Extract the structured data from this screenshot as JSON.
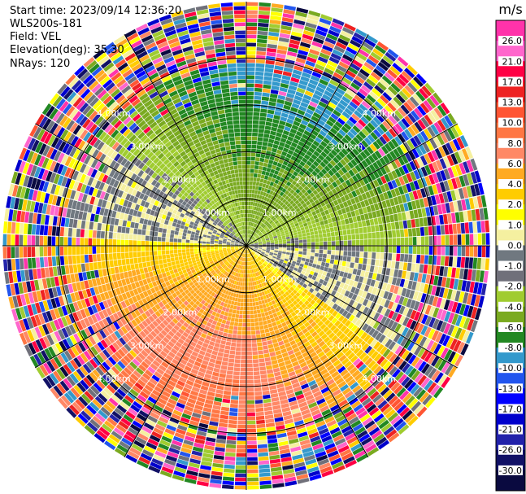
{
  "info": {
    "start_time": "Start time: 2023/09/14 12:36:20",
    "instrument": "WLS200s-181",
    "field": "Field: VEL",
    "elevation": "Elevation(deg): 35.30",
    "nrays": "NRays: 120"
  },
  "chart_data": {
    "type": "heatmap",
    "projection": "polar-ppi",
    "field": "VEL",
    "units": "m/s",
    "range_rings_km": [
      1,
      2,
      3,
      4
    ],
    "range_ring_labels": [
      "1.00km",
      "2.00km",
      "3.00km",
      "4.00km"
    ],
    "azimuth_lines_deg": [
      0,
      30,
      60,
      90,
      120,
      150,
      180,
      210,
      240,
      270,
      300,
      330
    ],
    "max_range_km": 5.2,
    "nrays": 120,
    "colorbar": {
      "title": "m/s",
      "tick_labels": [
        "26.0",
        "21.0",
        "17.0",
        "13.0",
        "10.0",
        "8.0",
        "6.0",
        "4.0",
        "2.0",
        "1.0",
        "0.0",
        "-1.0",
        "-2.0",
        "-4.0",
        "-6.0",
        "-8.0",
        "-10.0",
        "-13.0",
        "-17.0",
        "-21.0",
        "-26.0",
        "-30.0"
      ],
      "colors": [
        "#ff33aa",
        "#ff66cc",
        "#ff0044",
        "#ee2222",
        "#ff5533",
        "#ff7744",
        "#ff8866",
        "#ffaa22",
        "#ffcc00",
        "#ffff00",
        "#f5f0a0",
        "#707880",
        "#70707a",
        "#a0cc30",
        "#7aaa20",
        "#228822",
        "#3399cc",
        "#2255ee",
        "#0000ff",
        "#0000cc",
        "#2222aa",
        "#111166",
        "#0a0a40"
      ]
    },
    "velocity_pattern": {
      "approaching_sector_center_deg": 20,
      "approaching_peak_mps": -7,
      "receding_sector_center_deg": 200,
      "receding_peak_mps": 7,
      "clean_data_max_range_km": 3.9
    }
  }
}
